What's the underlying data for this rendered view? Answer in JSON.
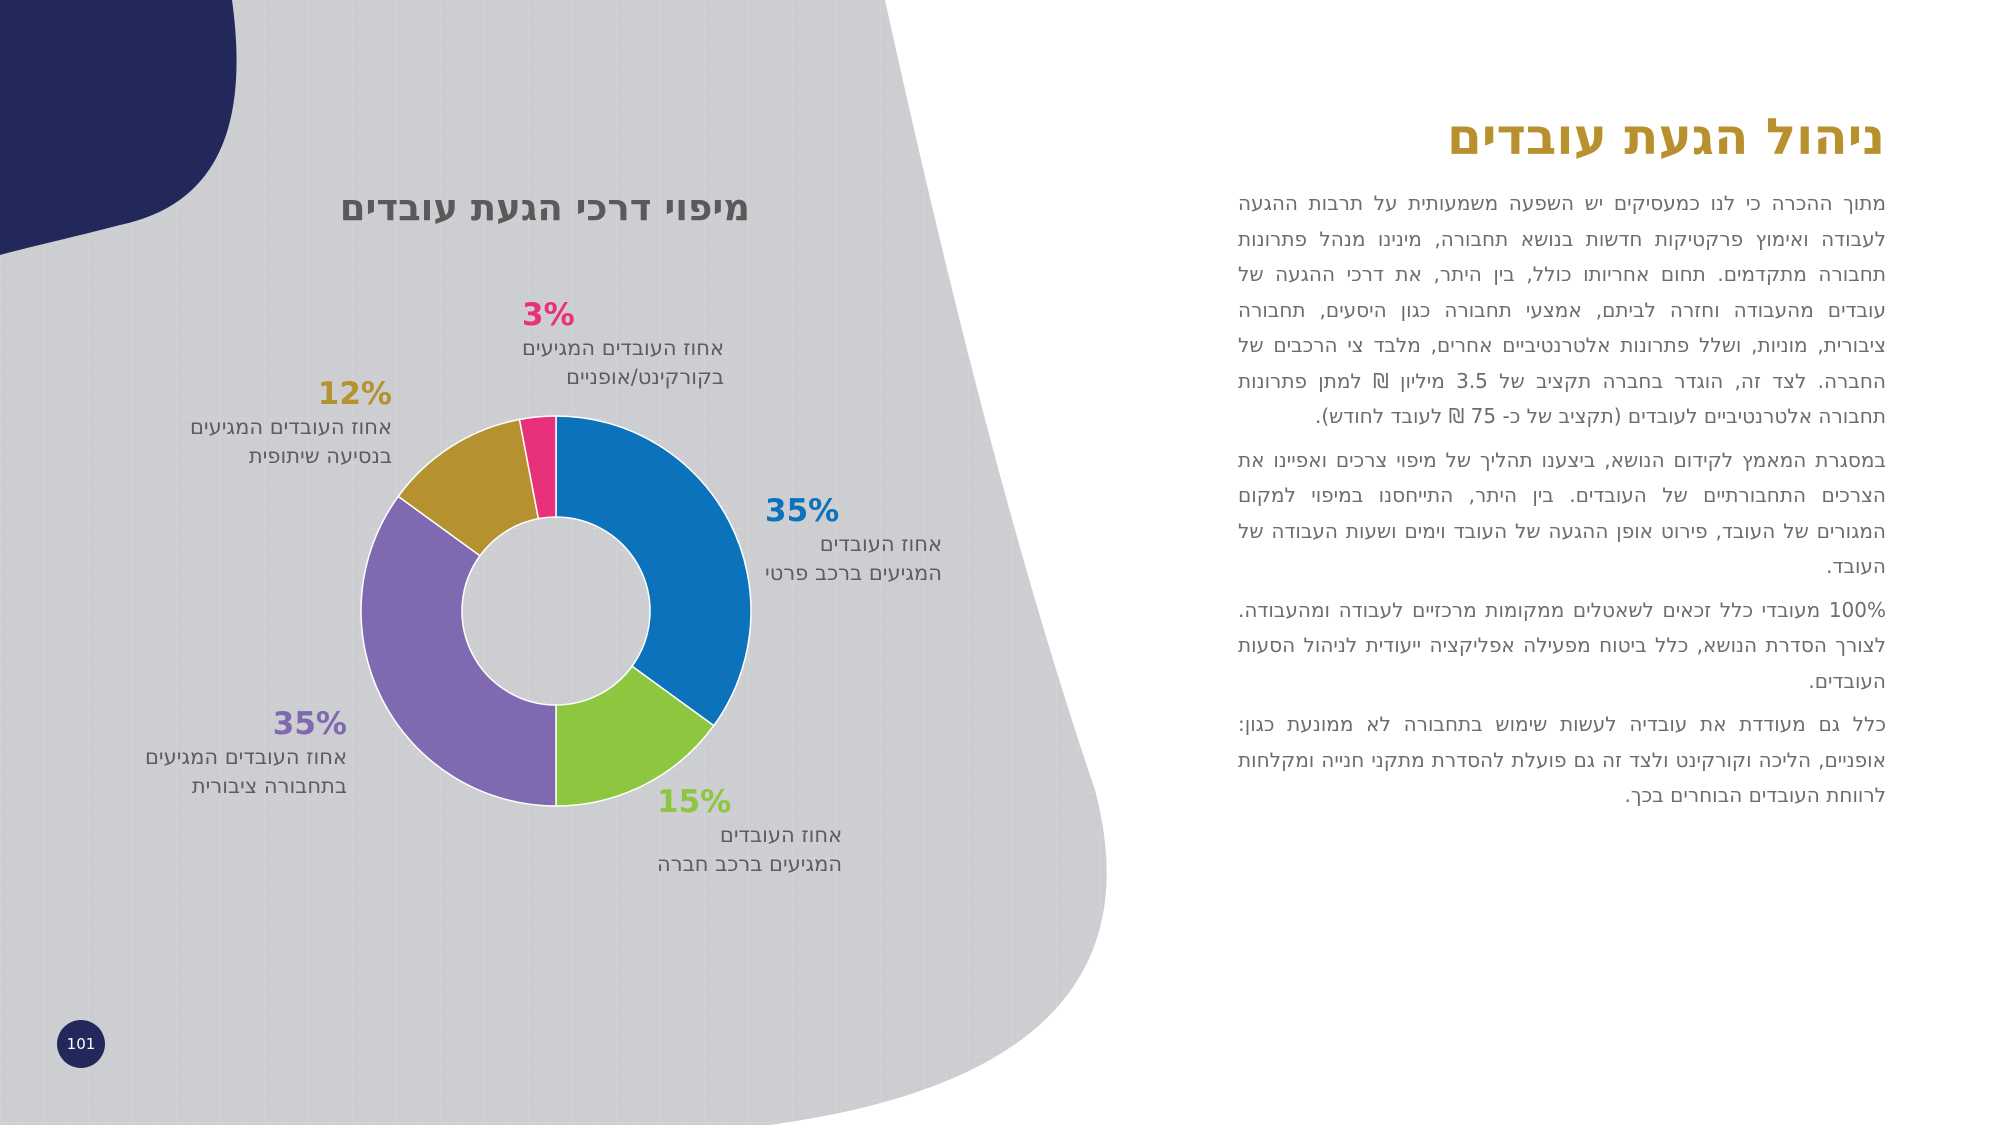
{
  "page": {
    "title": "ניהול הגעת עובדים",
    "paragraphs": [
      "מתוך ההכרה כי לנו כמעסיקים יש השפעה משמעותית על תרבות ההגעה לעבודה ואימוץ פרקטיקות חדשות בנושא תחבורה, מינינו מנהל פתרונות תחבורה מתקדמים. תחום אחריותו כולל, בין היתר, את דרכי ההגעה של עובדים מהעבודה וחזרה לביתם, אמצעי תחבורה כגון היסעים, תחבורה ציבורית, מוניות, ושלל פתרונות אלטרנטיביים אחרים, מלבד צי הרכבים של החברה. לצד זה, הוגדר בחברה תקציב של 3.5 מיליון ₪ למתן פתרונות תחבורה אלטרנטיביים לעובדים (תקציב של כ- 75 ₪ לעובד לחודש).",
      "במסגרת המאמץ לקידום הנושא, ביצענו תהליך של מיפוי צרכים ואפיינו את הצרכים התחבורתיים של העובדים. בין היתר, התייחסנו במיפוי למקום המגורים של העובד, פירוט אופן ההגעה של העובד וימים ושעות העבודה של העובד.",
      "100% מעובדי כלל זכאים לשאטלים ממקומות מרכזיים לעבודה ומהעבודה. לצורך הסדרת הנושא, כלל ביטוח מפעילה אפליקציה ייעודית לניהול הסעות העובדים.",
      "כלל גם מעודדת את עובדיה לעשות שימוש בתחבורה לא ממונעת כגון: אופניים, הליכה וקורקינט ולצד זה גם פועלת להסדרת מתקני חנייה ומקלחות לרווחת העובדים הבוחרים בכך."
    ],
    "page_number": "101"
  },
  "chart_data": {
    "type": "pie",
    "title": "מיפוי דרכי הגעת עובדים",
    "categories": [
      "אחוז העובדים המגיעים ברכב פרטי",
      "אחוז העובדים המגיעים ברכב חברה",
      "אחוז העובדים המגיעים בתחבורה ציבורית",
      "אחוז העובדים המגיעים בנסיעה שיתופית",
      "אחוז העובדים המגיעים בקורקינט/אופניים"
    ],
    "values": [
      35,
      15,
      35,
      12,
      3
    ],
    "value_labels": [
      "35%",
      "15%",
      "35%",
      "12%",
      "3%"
    ],
    "colors": [
      "#0b72bb",
      "#8dc63f",
      "#7f69b1",
      "#b5922f",
      "#e8317a"
    ],
    "donut": true,
    "start_angle": "top, clockwise"
  },
  "labels": [
    {
      "pct": "35%",
      "lines": [
        "אחוז העובדים",
        "המגיעים ברכב פרטי"
      ]
    },
    {
      "pct": "15%",
      "lines": [
        "אחוז העובדים",
        "המגיעים ברכב חברה"
      ]
    },
    {
      "pct": "35%",
      "lines": [
        "אחוז העובדים המגיעים",
        "בתחבורה ציבורית"
      ]
    },
    {
      "pct": "12%",
      "lines": [
        "אחוז העובדים המגיעים",
        "בנסיעה שיתופית"
      ]
    },
    {
      "pct": "3%",
      "lines": [
        "אחוז העובדים המגיעים",
        "בקורקינט/אופניים"
      ]
    }
  ],
  "colors": {
    "background_panel": "#cdced1",
    "navy": "#22295a",
    "gold": "#b8912e",
    "text": "#6d6d6d"
  }
}
